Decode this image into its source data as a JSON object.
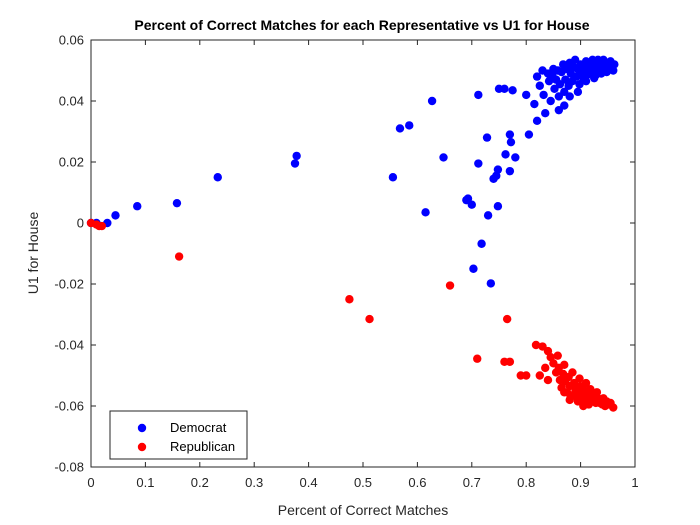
{
  "chart_data": {
    "type": "scatter",
    "title": "Percent of Correct Matches for each Representative vs U1 for House",
    "xlabel": "Percent of Correct Matches",
    "ylabel": "U1 for House",
    "xlim": [
      0,
      1
    ],
    "ylim": [
      -0.08,
      0.06
    ],
    "xticks": [
      "0",
      "0.1",
      "0.2",
      "0.3",
      "0.4",
      "0.5",
      "0.6",
      "0.7",
      "0.8",
      "0.9",
      "1"
    ],
    "yticks": [
      "-0.08",
      "-0.06",
      "-0.04",
      "-0.02",
      "0",
      "0.02",
      "0.04",
      "0.06"
    ],
    "grid": false,
    "legend_position": "bottom-left",
    "series": [
      {
        "name": "Democrat",
        "color": "#0000ff",
        "points": [
          [
            0.0,
            0.0
          ],
          [
            0.01,
            0.0
          ],
          [
            0.03,
            0.0
          ],
          [
            0.045,
            0.0025
          ],
          [
            0.085,
            0.0055
          ],
          [
            0.158,
            0.0065
          ],
          [
            0.233,
            0.015
          ],
          [
            0.375,
            0.0195
          ],
          [
            0.378,
            0.022
          ],
          [
            0.555,
            0.015
          ],
          [
            0.568,
            0.031
          ],
          [
            0.585,
            0.032
          ],
          [
            0.615,
            0.0035
          ],
          [
            0.627,
            0.04
          ],
          [
            0.648,
            0.0215
          ],
          [
            0.69,
            0.0075
          ],
          [
            0.693,
            0.008
          ],
          [
            0.7,
            0.006
          ],
          [
            0.703,
            -0.015
          ],
          [
            0.712,
            0.042
          ],
          [
            0.712,
            0.0195
          ],
          [
            0.718,
            -0.0068
          ],
          [
            0.728,
            0.028
          ],
          [
            0.73,
            0.0025
          ],
          [
            0.735,
            -0.0198
          ],
          [
            0.74,
            0.0145
          ],
          [
            0.745,
            0.0155
          ],
          [
            0.748,
            0.0175
          ],
          [
            0.748,
            0.0055
          ],
          [
            0.75,
            0.044
          ],
          [
            0.76,
            0.044
          ],
          [
            0.762,
            0.0225
          ],
          [
            0.77,
            0.017
          ],
          [
            0.77,
            0.029
          ],
          [
            0.772,
            0.0265
          ],
          [
            0.775,
            0.0435
          ],
          [
            0.78,
            0.0215
          ],
          [
            0.8,
            0.042
          ],
          [
            0.805,
            0.029
          ],
          [
            0.815,
            0.039
          ],
          [
            0.82,
            0.0335
          ],
          [
            0.82,
            0.048
          ],
          [
            0.825,
            0.045
          ],
          [
            0.83,
            0.05
          ],
          [
            0.832,
            0.042
          ],
          [
            0.835,
            0.036
          ],
          [
            0.84,
            0.049
          ],
          [
            0.842,
            0.0465
          ],
          [
            0.845,
            0.04
          ],
          [
            0.848,
            0.0485
          ],
          [
            0.85,
            0.0505
          ],
          [
            0.852,
            0.044
          ],
          [
            0.855,
            0.047
          ],
          [
            0.858,
            0.05
          ],
          [
            0.86,
            0.0415
          ],
          [
            0.862,
            0.0455
          ],
          [
            0.865,
            0.0495
          ],
          [
            0.868,
            0.052
          ],
          [
            0.87,
            0.043
          ],
          [
            0.872,
            0.047
          ],
          [
            0.875,
            0.0505
          ],
          [
            0.878,
            0.045
          ],
          [
            0.88,
            0.0525
          ],
          [
            0.882,
            0.049
          ],
          [
            0.885,
            0.0465
          ],
          [
            0.888,
            0.051
          ],
          [
            0.89,
            0.0535
          ],
          [
            0.892,
            0.048
          ],
          [
            0.895,
            0.0505
          ],
          [
            0.898,
            0.0455
          ],
          [
            0.9,
            0.052
          ],
          [
            0.902,
            0.0495
          ],
          [
            0.905,
            0.0475
          ],
          [
            0.908,
            0.0515
          ],
          [
            0.91,
            0.053
          ],
          [
            0.912,
            0.0485
          ],
          [
            0.915,
            0.0505
          ],
          [
            0.918,
            0.052
          ],
          [
            0.92,
            0.0495
          ],
          [
            0.922,
            0.0535
          ],
          [
            0.925,
            0.0505
          ],
          [
            0.928,
            0.0485
          ],
          [
            0.93,
            0.052
          ],
          [
            0.932,
            0.0535
          ],
          [
            0.935,
            0.0505
          ],
          [
            0.938,
            0.049
          ],
          [
            0.94,
            0.052
          ],
          [
            0.942,
            0.0535
          ],
          [
            0.945,
            0.051
          ],
          [
            0.948,
            0.0495
          ],
          [
            0.95,
            0.052
          ],
          [
            0.952,
            0.0505
          ],
          [
            0.955,
            0.053
          ],
          [
            0.958,
            0.0515
          ],
          [
            0.96,
            0.05
          ],
          [
            0.962,
            0.052
          ],
          [
            0.87,
            0.0385
          ],
          [
            0.88,
            0.0415
          ],
          [
            0.895,
            0.043
          ],
          [
            0.86,
            0.037
          ],
          [
            0.91,
            0.0465
          ],
          [
            0.925,
            0.0475
          ]
        ]
      },
      {
        "name": "Republican",
        "color": "#ff0000",
        "points": [
          [
            0.0,
            0.0
          ],
          [
            0.01,
            -0.0005
          ],
          [
            0.015,
            -0.001
          ],
          [
            0.02,
            -0.001
          ],
          [
            0.162,
            -0.011
          ],
          [
            0.475,
            -0.025
          ],
          [
            0.512,
            -0.0315
          ],
          [
            0.66,
            -0.0205
          ],
          [
            0.71,
            -0.0445
          ],
          [
            0.765,
            -0.0315
          ],
          [
            0.76,
            -0.0455
          ],
          [
            0.77,
            -0.0455
          ],
          [
            0.79,
            -0.05
          ],
          [
            0.8,
            -0.05
          ],
          [
            0.818,
            -0.04
          ],
          [
            0.83,
            -0.0405
          ],
          [
            0.825,
            -0.05
          ],
          [
            0.84,
            -0.042
          ],
          [
            0.835,
            -0.0475
          ],
          [
            0.845,
            -0.044
          ],
          [
            0.84,
            -0.0515
          ],
          [
            0.85,
            -0.046
          ],
          [
            0.855,
            -0.049
          ],
          [
            0.858,
            -0.0435
          ],
          [
            0.86,
            -0.0475
          ],
          [
            0.862,
            -0.0515
          ],
          [
            0.865,
            -0.054
          ],
          [
            0.868,
            -0.0495
          ],
          [
            0.87,
            -0.0465
          ],
          [
            0.872,
            -0.052
          ],
          [
            0.875,
            -0.0555
          ],
          [
            0.878,
            -0.0505
          ],
          [
            0.88,
            -0.0535
          ],
          [
            0.882,
            -0.057
          ],
          [
            0.885,
            -0.049
          ],
          [
            0.888,
            -0.0525
          ],
          [
            0.89,
            -0.0555
          ],
          [
            0.892,
            -0.0545
          ],
          [
            0.895,
            -0.0575
          ],
          [
            0.898,
            -0.051
          ],
          [
            0.9,
            -0.0535
          ],
          [
            0.902,
            -0.056
          ],
          [
            0.905,
            -0.0545
          ],
          [
            0.908,
            -0.058
          ],
          [
            0.91,
            -0.0525
          ],
          [
            0.912,
            -0.0555
          ],
          [
            0.915,
            -0.057
          ],
          [
            0.918,
            -0.0545
          ],
          [
            0.92,
            -0.0585
          ],
          [
            0.922,
            -0.056
          ],
          [
            0.925,
            -0.0575
          ],
          [
            0.928,
            -0.059
          ],
          [
            0.93,
            -0.0555
          ],
          [
            0.932,
            -0.0575
          ],
          [
            0.935,
            -0.059
          ],
          [
            0.938,
            -0.058
          ],
          [
            0.94,
            -0.0595
          ],
          [
            0.942,
            -0.0575
          ],
          [
            0.945,
            -0.06
          ],
          [
            0.948,
            -0.0585
          ],
          [
            0.952,
            -0.0595
          ],
          [
            0.955,
            -0.059
          ],
          [
            0.96,
            -0.0605
          ],
          [
            0.895,
            -0.0585
          ],
          [
            0.905,
            -0.06
          ],
          [
            0.915,
            -0.0595
          ],
          [
            0.87,
            -0.0555
          ],
          [
            0.88,
            -0.058
          ]
        ]
      }
    ]
  }
}
